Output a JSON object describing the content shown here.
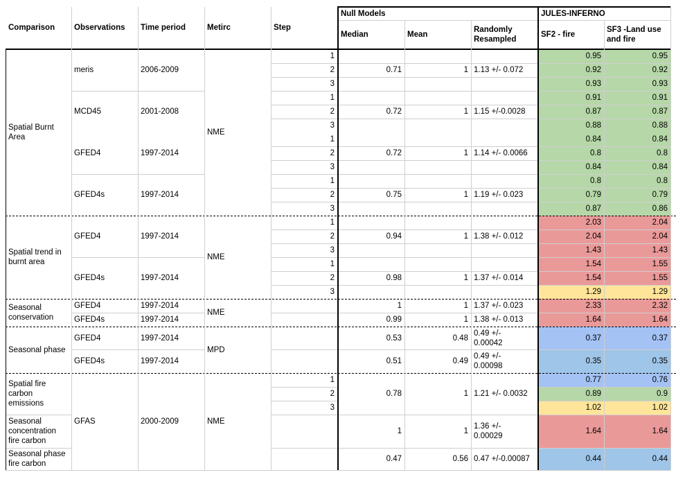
{
  "colors": {
    "green": "#b6d7a8",
    "red": "#ea9999",
    "yellow": "#ffe599",
    "blue": "#a4c2f4",
    "light_blue": "#9fc5e8"
  },
  "header": {
    "comparison": "Comparison",
    "observations": "Observations",
    "time_period": "Time period",
    "metric": "Metirc",
    "step": "Step",
    "null_models": "Null Models",
    "median": "Median",
    "mean": "Mean",
    "randomly_resampled": "Randomly\nResampled",
    "jules_inferno": "JULES-INFERNO",
    "sf2": "SF2 - fire",
    "sf3": "SF3 -Land use\nand fire"
  },
  "comparisons": [
    "Spatial Burnt\nArea",
    "Spatial trend in\nburnt area",
    "Seasonal\nconservation",
    "Seasonal phase",
    "Spatial fire\ncarbon\nemissions",
    "Seasonal\nconcentration\nfire carbon",
    "Seasonal phase\nfire carbon"
  ],
  "metrics": [
    "NME",
    "NME",
    "NME",
    "MPD",
    "NME"
  ],
  "groups": [
    {
      "obs": "meris",
      "period": "2006-2009",
      "median": "0.71",
      "mean": "1",
      "resampled": "1.13 +/- 0.072"
    },
    {
      "obs": "MCD45",
      "period": "2001-2008",
      "median": "0.72",
      "mean": "1",
      "resampled": "1.15 +/-0.0028"
    },
    {
      "obs": "GFED4",
      "period": "1997-2014",
      "median": "0.72",
      "mean": "1",
      "resampled": "1.14 +/- 0.0066"
    },
    {
      "obs": "GFED4s",
      "period": "1997-2014",
      "median": "0.75",
      "mean": "1",
      "resampled": "1.19 +/- 0.023"
    },
    {
      "obs": "GFED4",
      "period": "1997-2014",
      "median": "0.94",
      "mean": "1",
      "resampled": "1.38 +/- 0.012"
    },
    {
      "obs": "GFED4s",
      "period": "1997-2014",
      "median": "0.98",
      "mean": "1",
      "resampled": "1.37 +/- 0.014"
    },
    {
      "obs": "GFED4",
      "period": "1997-2014",
      "median": "1",
      "mean": "1",
      "resampled": "1.37 +/- 0.023"
    },
    {
      "obs": "GFED4s",
      "period": "1997-2014",
      "median": "0.99",
      "mean": "1",
      "resampled": "1.38 +/- 0.013"
    },
    {
      "obs": "GFED4",
      "period": "1997-2014",
      "median": "0.53",
      "mean": "0.48",
      "resampled": "0.49 +/-\n0.00042"
    },
    {
      "obs": "GFED4s",
      "period": "1997-2014",
      "median": "0.51",
      "mean": "0.49",
      "resampled": "0.49 +/-\n0.00098"
    },
    {
      "obs": "GFAS",
      "period": "2000-2009",
      "median": "",
      "mean": "",
      "resampled": ""
    },
    {
      "obs": "",
      "period": "",
      "median": "0.78",
      "mean": "1",
      "resampled": "1.21 +/- 0.0032"
    },
    {
      "obs": "",
      "period": "",
      "median": "1",
      "mean": "1",
      "resampled": "1.36 +/-\n0.00029"
    },
    {
      "obs": "",
      "period": "",
      "median": "0.47",
      "mean": "0.56",
      "resampled": "0.47 +/-0.00087"
    }
  ],
  "rows": [
    {
      "step": "1",
      "sf2": "0.95",
      "sf3": "0.95",
      "color": "#b6d7a8"
    },
    {
      "step": "2",
      "sf2": "0.92",
      "sf3": "0.92",
      "color": "#b6d7a8"
    },
    {
      "step": "3",
      "sf2": "0.93",
      "sf3": "0.93",
      "color": "#b6d7a8"
    },
    {
      "step": "1",
      "sf2": "0.91",
      "sf3": "0.91",
      "color": "#b6d7a8"
    },
    {
      "step": "2",
      "sf2": "0.87",
      "sf3": "0.87",
      "color": "#b6d7a8"
    },
    {
      "step": "3",
      "sf2": "0.88",
      "sf3": "0.88",
      "color": "#b6d7a8"
    },
    {
      "step": "1",
      "sf2": "0.84",
      "sf3": "0.84",
      "color": "#b6d7a8"
    },
    {
      "step": "2",
      "sf2": "0.8",
      "sf3": "0.8",
      "color": "#b6d7a8"
    },
    {
      "step": "3",
      "sf2": "0.84",
      "sf3": "0.84",
      "color": "#b6d7a8"
    },
    {
      "step": "1",
      "sf2": "0.8",
      "sf3": "0.8",
      "color": "#b6d7a8"
    },
    {
      "step": "2",
      "sf2": "0.79",
      "sf3": "0.79",
      "color": "#b6d7a8"
    },
    {
      "step": "3",
      "sf2": "0.87",
      "sf3": "0.86",
      "color": "#b6d7a8"
    },
    {
      "step": "1",
      "sf2": "2.03",
      "sf3": "2.04",
      "color": "#ea9999"
    },
    {
      "step": "2",
      "sf2": "2.04",
      "sf3": "2.04",
      "color": "#ea9999"
    },
    {
      "step": "3",
      "sf2": "1.43",
      "sf3": "1.43",
      "color": "#ea9999"
    },
    {
      "step": "1",
      "sf2": "1.54",
      "sf3": "1.55",
      "color": "#ea9999"
    },
    {
      "step": "2",
      "sf2": "1.54",
      "sf3": "1.55",
      "color": "#ea9999"
    },
    {
      "step": "3",
      "sf2": "1.29",
      "sf3": "1.29",
      "color": "#ffe599"
    },
    {
      "step": "",
      "sf2": "2.33",
      "sf3": "2.32",
      "color": "#ea9999"
    },
    {
      "step": "",
      "sf2": "1.64",
      "sf3": "1.64",
      "color": "#ea9999"
    },
    {
      "step": "",
      "sf2": "0.37",
      "sf3": "0.37",
      "color": "#a4c2f4"
    },
    {
      "step": "",
      "sf2": "0.35",
      "sf3": "0.35",
      "color": "#9fc5e8"
    },
    {
      "step": "1",
      "sf2": "0.77",
      "sf3": "0.76",
      "color": "#a4c2f4"
    },
    {
      "step": "2",
      "sf2": "0.89",
      "sf3": "0.9",
      "color": "#b6d7a8"
    },
    {
      "step": "3",
      "sf2": "1.02",
      "sf3": "1.02",
      "color": "#ffe599"
    },
    {
      "step": "",
      "sf2": "1.64",
      "sf3": "1.64",
      "color": "#ea9999"
    },
    {
      "step": "",
      "sf2": "0.44",
      "sf3": "0.44",
      "color": "#9fc5e8"
    }
  ]
}
